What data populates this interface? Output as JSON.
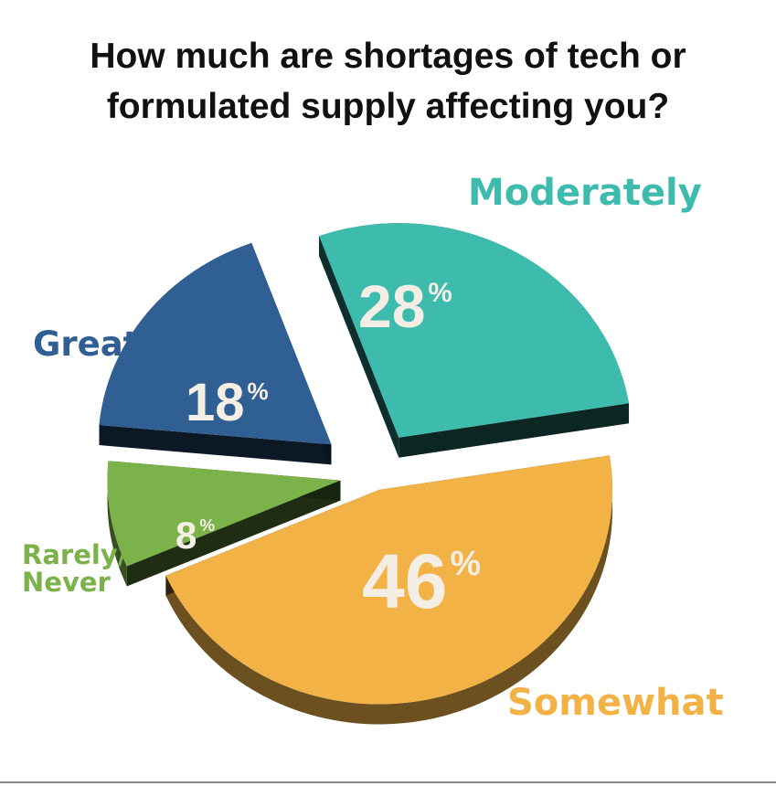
{
  "chart_data": {
    "type": "pie",
    "title": "How much are shortages of tech or formulated supply affecting you?",
    "title_lines": [
      "How much are shortages of tech or",
      "formulated supply affecting you?"
    ],
    "unit": "%",
    "slices": [
      {
        "label": "Moderately",
        "value": 28,
        "color": "#3dbcae"
      },
      {
        "label": "Somewhat",
        "value": 46,
        "color": "#f2b246"
      },
      {
        "label": "Rarely/ Never",
        "value": 8,
        "color": "#7cb24a"
      },
      {
        "label": "Greatly",
        "value": 18,
        "color": "#2f5f93"
      }
    ]
  }
}
